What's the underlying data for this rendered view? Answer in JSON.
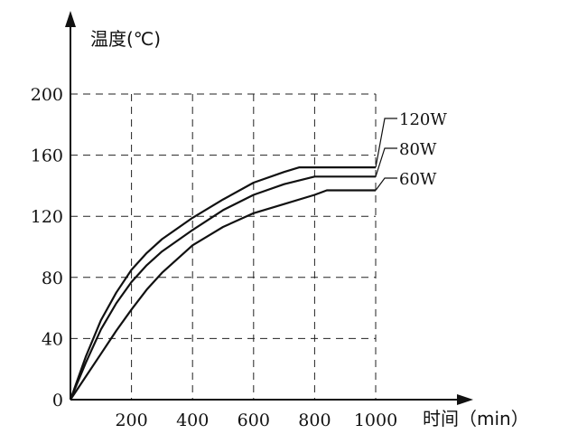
{
  "chart_data": {
    "type": "line",
    "title": "",
    "xlabel": "时间（min）",
    "ylabel": "温度(℃)",
    "xlim": [
      0,
      1000
    ],
    "ylim": [
      0,
      200
    ],
    "x_ticks": [
      200,
      400,
      600,
      800,
      1000
    ],
    "y_ticks": [
      0,
      40,
      80,
      120,
      160,
      200
    ],
    "grid": true,
    "series": [
      {
        "name": "120W",
        "x": [
          0,
          50,
          100,
          150,
          200,
          250,
          300,
          400,
          500,
          600,
          700,
          750,
          800,
          900,
          1000
        ],
        "y": [
          0,
          28,
          52,
          70,
          85,
          96,
          105,
          119,
          131,
          142,
          149,
          152,
          152,
          152,
          152
        ]
      },
      {
        "name": "80W",
        "x": [
          0,
          50,
          100,
          150,
          200,
          250,
          300,
          400,
          500,
          600,
          700,
          800,
          900,
          1000
        ],
        "y": [
          0,
          24,
          46,
          63,
          77,
          88,
          97,
          111,
          124,
          134,
          141,
          146,
          146,
          146
        ]
      },
      {
        "name": "60W",
        "x": [
          0,
          50,
          100,
          150,
          200,
          250,
          300,
          400,
          500,
          600,
          700,
          800,
          840,
          900,
          1000
        ],
        "y": [
          0,
          15,
          30,
          45,
          59,
          72,
          83,
          101,
          113,
          122,
          128,
          134,
          137,
          137,
          137
        ]
      }
    ]
  }
}
